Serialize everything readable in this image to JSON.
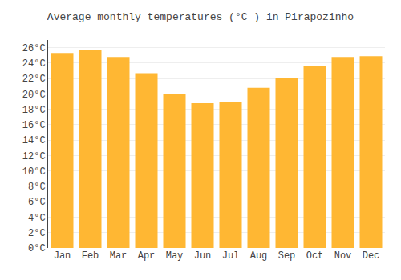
{
  "chart_data": {
    "type": "bar",
    "title": "Average monthly temperatures (°C ) in Pirapozinho",
    "categories": [
      "Jan",
      "Feb",
      "Mar",
      "Apr",
      "May",
      "Jun",
      "Jul",
      "Aug",
      "Sep",
      "Oct",
      "Nov",
      "Dec"
    ],
    "values": [
      25.3,
      25.7,
      24.8,
      22.7,
      20.0,
      18.8,
      18.9,
      20.8,
      22.1,
      23.6,
      24.8,
      24.9
    ],
    "color": "#FFB733",
    "ylim": [
      0,
      27
    ],
    "yticks": [
      {
        "value": 0,
        "label": "0°C"
      },
      {
        "value": 2,
        "label": "2°C"
      },
      {
        "value": 4,
        "label": "4°C"
      },
      {
        "value": 6,
        "label": "6°C"
      },
      {
        "value": 8,
        "label": "8°C"
      },
      {
        "value": 10,
        "label": "10°C"
      },
      {
        "value": 12,
        "label": "12°C"
      },
      {
        "value": 14,
        "label": "14°C"
      },
      {
        "value": 16,
        "label": "16°C"
      },
      {
        "value": 18,
        "label": "18°C"
      },
      {
        "value": 20,
        "label": "20°C"
      },
      {
        "value": 22,
        "label": "22°C"
      },
      {
        "value": 24,
        "label": "24°C"
      },
      {
        "value": 26,
        "label": "26°C"
      }
    ],
    "grid": true
  }
}
